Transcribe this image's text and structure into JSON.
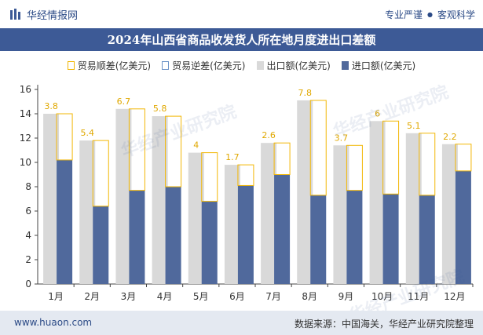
{
  "header": {
    "brand": "华经情报网",
    "tagline_left": "专业严谨",
    "tagline_sep": "●",
    "tagline_right": "客观科学"
  },
  "title": "2024年山西省商品收发货人所在地月度进出口差额",
  "legend": {
    "surplus": "贸易顺差(亿美元)",
    "deficit": "贸易逆差(亿美元)",
    "export": "出口额(亿美元)",
    "import": "进口额(亿美元)"
  },
  "colors": {
    "export": "#d9d9d9",
    "import": "#50699c",
    "surplus_border": "#f2b705",
    "surplus_label": "#e0a800",
    "title_bg": "#3d5a96"
  },
  "chart_data": {
    "type": "bar",
    "categories": [
      "1月",
      "2月",
      "3月",
      "4月",
      "5月",
      "6月",
      "7月",
      "8月",
      "9月",
      "10月",
      "11月",
      "12月"
    ],
    "series": [
      {
        "name": "出口额(亿美元)",
        "values": [
          14.0,
          11.8,
          14.4,
          13.8,
          10.8,
          9.8,
          11.6,
          15.1,
          11.4,
          13.4,
          12.4,
          11.5
        ]
      },
      {
        "name": "进口额(亿美元)",
        "values": [
          10.2,
          6.4,
          7.7,
          8.0,
          6.8,
          8.1,
          9.0,
          7.3,
          7.7,
          7.4,
          7.3,
          9.3
        ]
      },
      {
        "name": "贸易顺差(亿美元)",
        "values": [
          3.8,
          5.4,
          6.7,
          5.8,
          4,
          1.7,
          2.6,
          7.8,
          3.7,
          6,
          5.1,
          2.2
        ]
      }
    ],
    "surplus_labels": [
      "3.8",
      "5.4",
      "6.7",
      "5.8",
      "4",
      "1.7",
      "2.6",
      "7.8",
      "3.7",
      "6",
      "5.1",
      "2.2"
    ],
    "yticks": [
      "0",
      "2",
      "4",
      "6",
      "8",
      "10",
      "12",
      "14",
      "16"
    ],
    "ylim": [
      0,
      16
    ],
    "grid": false,
    "legend_position": "top"
  },
  "footer": {
    "url": "www.huaon.com",
    "source": "数据来源：中国海关，华经产业研究院整理"
  },
  "watermark": "华经产业研究院"
}
